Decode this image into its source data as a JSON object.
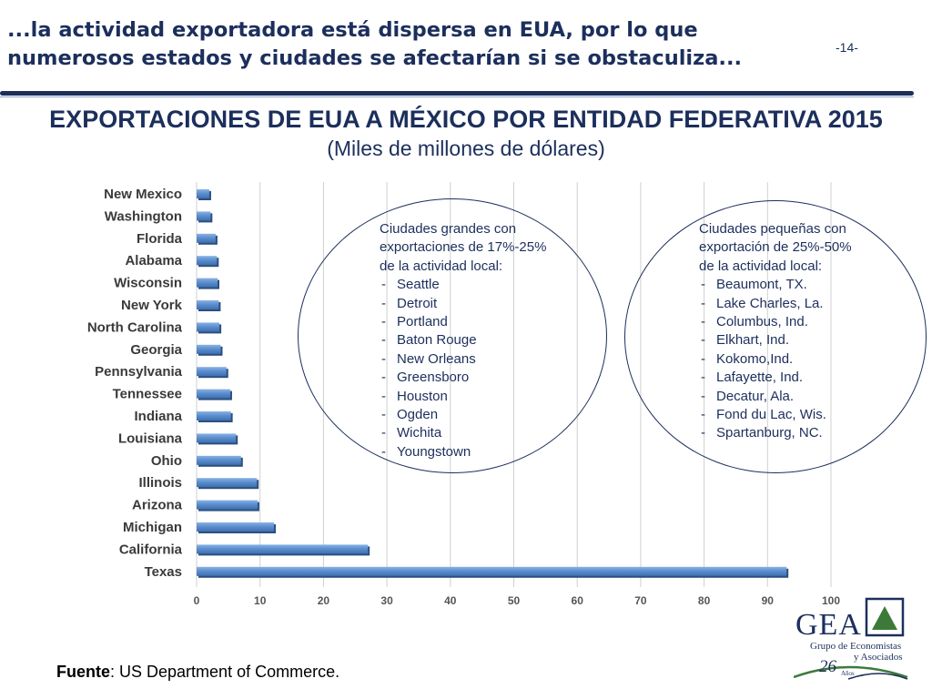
{
  "header": {
    "line1": "...la actividad exportadora está dispersa en EUA, por lo que",
    "line2": "numerosos estados y ciudades se afectarían si se obstaculiza...",
    "slide_number": "-14-"
  },
  "chart_data": {
    "type": "bar",
    "orientation": "horizontal",
    "title": "EXPORTACIONES DE EUA A MÉXICO POR ENTIDAD FEDERATIVA 2015",
    "subtitle": "(Miles de millones de dólares)",
    "categories": [
      "New Mexico",
      "Washington",
      "Florida",
      "Alabama",
      "Wisconsin",
      "New York",
      "North Carolina",
      "Georgia",
      "Pennsylvania",
      "Tennessee",
      "Indiana",
      "Louisiana",
      "Ohio",
      "Illinois",
      "Arizona",
      "Michigan",
      "California",
      "Texas"
    ],
    "values": [
      2,
      2.2,
      3,
      3.2,
      3.3,
      3.5,
      3.6,
      3.8,
      4.7,
      5.3,
      5.4,
      6.2,
      7,
      9.5,
      9.6,
      12.2,
      27,
      93
    ],
    "xlim": [
      0,
      100
    ],
    "xticks": [
      0,
      10,
      20,
      30,
      40,
      50,
      60,
      70,
      80,
      90,
      100
    ],
    "grid": "vertical",
    "bar_color": "#5b8fd0"
  },
  "callouts": {
    "large": {
      "heading": [
        "Ciudades grandes con",
        "exportaciones de 17%-25%",
        "de la actividad local:"
      ],
      "items": [
        "Seattle",
        "Detroit",
        "Portland",
        "Baton Rouge",
        "New Orleans",
        "Greensboro",
        "Houston",
        "Ogden",
        "Wichita",
        "Youngstown"
      ]
    },
    "small": {
      "heading": [
        "Ciudades pequeñas con",
        "exportación de 25%-50%",
        "de la actividad local:"
      ],
      "items": [
        "Beaumont, TX.",
        "Lake Charles, La.",
        "Columbus, Ind.",
        "Elkhart, Ind.",
        "Kokomo,Ind.",
        "Lafayette, Ind.",
        "Decatur, Ala.",
        "Fond du Lac, Wis.",
        "Spartanburg, NC."
      ]
    }
  },
  "source": {
    "label": "Fuente",
    "text": ": US Department of Commerce."
  },
  "logo": {
    "name": "GEA",
    "line1": "Grupo de Economistas",
    "line2": "y Asociados",
    "years": "26",
    "years_label": "Años",
    "colors": {
      "navy": "#1c2f5c",
      "green": "#3d7a3a"
    }
  }
}
